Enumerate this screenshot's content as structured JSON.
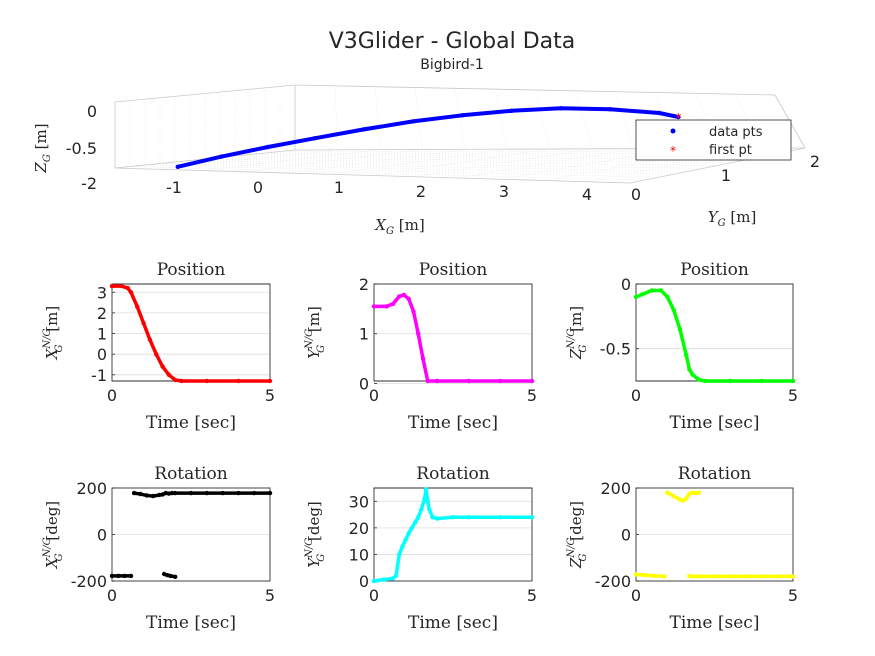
{
  "title": "V3Glider - Global Data",
  "subtitle": "Bigbird-1",
  "chart_data": [
    {
      "type": "scatter",
      "name": "trajectory-3d",
      "xlabel": "X",
      "xlabel_sub": "G",
      "xlabel_unit": " [m]",
      "ylabel": "Y",
      "ylabel_sub": "G",
      "ylabel_unit": " [m]",
      "zlabel": "Z",
      "zlabel_sub": "G",
      "zlabel_unit": " [m]",
      "xticks": [
        "-1",
        "0",
        "1",
        "2",
        "3",
        "4"
      ],
      "yticks": [
        "0",
        "1",
        "2"
      ],
      "zticks": [
        "0",
        "-0.5",
        "-2"
      ],
      "grid": true,
      "legend": {
        "location": "right",
        "entries": [
          {
            "label": "data pts",
            "color": "#0000ff",
            "marker": "dot"
          },
          {
            "label": "first pt",
            "color": "#ff0000",
            "marker": "star"
          }
        ]
      },
      "series": [
        {
          "name": "data pts",
          "color": "#0000ff",
          "x": [
            -1.0,
            -0.5,
            0.0,
            0.5,
            1.0,
            1.5,
            2.0,
            2.5,
            3.0,
            3.5,
            4.0,
            4.2
          ],
          "y": [
            0.05,
            0.1,
            0.2,
            0.3,
            0.45,
            0.6,
            0.75,
            0.9,
            1.05,
            1.2,
            1.35,
            1.4
          ],
          "z": [
            -0.75,
            -0.62,
            -0.5,
            -0.39,
            -0.28,
            -0.18,
            -0.1,
            -0.04,
            0.0,
            0.0,
            -0.03,
            -0.07
          ]
        },
        {
          "name": "first pt",
          "color": "#ff0000",
          "x": [
            4.2
          ],
          "y": [
            1.4
          ],
          "z": [
            -0.07
          ]
        }
      ]
    },
    {
      "type": "scatter",
      "name": "pos-x",
      "title": "Position",
      "ylabel": "X",
      "ylabel_sub": "G",
      "ylabel_sup": "N/G",
      "ylabel_unit": " [m]",
      "xlabel": "Time [sec]",
      "color": "#ff0000",
      "xlim": [
        0,
        5
      ],
      "ylim": [
        -1.3,
        3.4
      ],
      "xticks": [
        0,
        5
      ],
      "yticks": [
        3,
        2,
        1,
        0,
        -1
      ],
      "x": [
        0,
        0.3,
        0.5,
        0.6,
        0.8,
        1.0,
        1.2,
        1.4,
        1.6,
        1.8,
        2.0,
        2.2,
        3.0,
        4.0,
        5.0
      ],
      "y": [
        3.3,
        3.3,
        3.2,
        3.0,
        2.3,
        1.5,
        0.7,
        0.0,
        -0.6,
        -1.0,
        -1.25,
        -1.3,
        -1.3,
        -1.3,
        -1.3
      ]
    },
    {
      "type": "scatter",
      "name": "pos-y",
      "title": "Position",
      "ylabel": "Y",
      "ylabel_sub": "G",
      "ylabel_sup": "N/G",
      "ylabel_unit": " [m]",
      "xlabel": "Time [sec]",
      "color": "#ff00ff",
      "xlim": [
        0,
        5
      ],
      "ylim": [
        0.05,
        2.0
      ],
      "xticks": [
        0,
        5
      ],
      "yticks": [
        2,
        1,
        0
      ],
      "x": [
        0,
        0.4,
        0.6,
        0.8,
        0.95,
        1.1,
        1.25,
        1.4,
        1.55,
        1.7,
        2.0,
        3.0,
        4.0,
        5.0
      ],
      "y": [
        1.55,
        1.55,
        1.6,
        1.75,
        1.78,
        1.7,
        1.45,
        1.0,
        0.5,
        0.05,
        0.05,
        0.05,
        0.05,
        0.05
      ]
    },
    {
      "type": "scatter",
      "name": "pos-z",
      "title": "Position",
      "ylabel": "Z",
      "ylabel_sub": "G",
      "ylabel_sup": "N/G",
      "ylabel_unit": " [m]",
      "xlabel": "Time [sec]",
      "color": "#00ff00",
      "xlim": [
        0,
        5
      ],
      "ylim": [
        -0.75,
        0.0
      ],
      "xticks": [
        0,
        5
      ],
      "yticks": [
        0,
        -0.5
      ],
      "x": [
        0,
        0.2,
        0.5,
        0.8,
        1.0,
        1.2,
        1.4,
        1.6,
        1.7,
        1.8,
        2.0,
        2.2,
        3.0,
        4.0,
        5.0
      ],
      "y": [
        -0.1,
        -0.08,
        -0.05,
        -0.05,
        -0.1,
        -0.2,
        -0.35,
        -0.55,
        -0.66,
        -0.7,
        -0.74,
        -0.75,
        -0.75,
        -0.75,
        -0.75
      ]
    },
    {
      "type": "scatter",
      "name": "rot-x",
      "title": "Rotation",
      "ylabel": "X",
      "ylabel_sub": "G",
      "ylabel_sup": "N/G",
      "ylabel_unit": " [deg]",
      "xlabel": "Time [sec]",
      "color": "#000000",
      "xlim": [
        0,
        5
      ],
      "ylim": [
        -200,
        200
      ],
      "xticks": [
        0,
        5
      ],
      "yticks": [
        200,
        0,
        -200
      ],
      "x": [
        0.0,
        0.2,
        0.4,
        0.6,
        0.7,
        0.9,
        1.1,
        1.3,
        1.5,
        1.6,
        1.7,
        1.8,
        1.9,
        2.0,
        2.5,
        3.0,
        3.5,
        4.0,
        4.5,
        5.0,
        1.65,
        1.75,
        1.85,
        2.0
      ],
      "y": [
        -178,
        -178,
        -178,
        -178,
        178,
        174,
        168,
        165,
        170,
        172,
        178,
        176,
        178,
        178,
        178,
        178,
        178,
        178,
        178,
        178,
        -170,
        -175,
        -178,
        -182
      ]
    },
    {
      "type": "scatter",
      "name": "rot-y",
      "title": "Rotation",
      "ylabel": "Y",
      "ylabel_sub": "G",
      "ylabel_sup": "N/G",
      "ylabel_unit": " [deg]",
      "xlabel": "Time [sec]",
      "color": "#00ffff",
      "xlim": [
        0,
        5
      ],
      "ylim": [
        0,
        35
      ],
      "xticks": [
        0,
        5
      ],
      "yticks": [
        30,
        20,
        10,
        0
      ],
      "x": [
        0,
        0.3,
        0.6,
        0.7,
        0.8,
        0.9,
        1.0,
        1.1,
        1.2,
        1.3,
        1.4,
        1.5,
        1.6,
        1.65,
        1.7,
        1.75,
        1.85,
        2.0,
        2.5,
        3.0,
        4.0,
        5.0
      ],
      "y": [
        0,
        0.5,
        1.0,
        2,
        10,
        13,
        15.5,
        18,
        20,
        22,
        24,
        27,
        31,
        34.5,
        30,
        27,
        24,
        23.5,
        24,
        24,
        24,
        24
      ]
    },
    {
      "type": "scatter",
      "name": "rot-z",
      "title": "Rotation",
      "ylabel": "Z",
      "ylabel_sub": "G",
      "ylabel_sup": "N/G",
      "ylabel_unit": " [deg]",
      "xlabel": "Time [sec]",
      "color": "#ffff00",
      "xlim": [
        0,
        5
      ],
      "ylim": [
        -200,
        200
      ],
      "xticks": [
        0,
        5
      ],
      "yticks": [
        200,
        0,
        -200
      ],
      "x": [
        0.0,
        0.3,
        0.6,
        0.9,
        1.0,
        1.2,
        1.4,
        1.5,
        1.6,
        1.7,
        1.8,
        1.9,
        2.0,
        1.7,
        1.8,
        2.0,
        2.5,
        3.0,
        3.5,
        4.0,
        4.5,
        5.0
      ],
      "y": [
        -172,
        -175,
        -178,
        -180,
        180,
        165,
        150,
        145,
        155,
        175,
        180,
        178,
        180,
        -178,
        -180,
        -180,
        -180,
        -180,
        -180,
        -180,
        -180,
        -180
      ]
    }
  ]
}
